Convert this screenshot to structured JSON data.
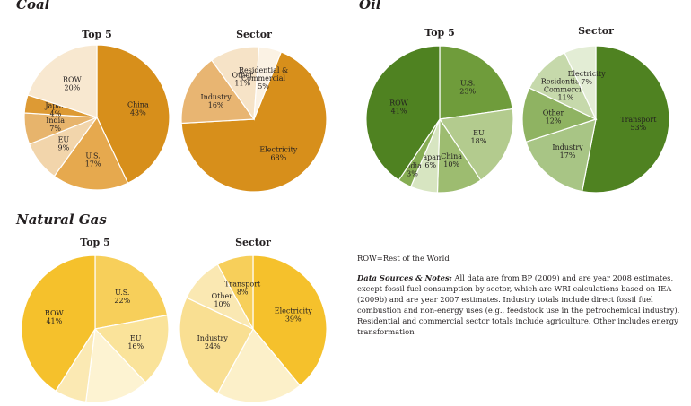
{
  "sections": {
    "coal": "Coal",
    "oil": "Oil",
    "gas": "Natural Gas"
  },
  "notes": {
    "row": "ROW=Rest of the World",
    "ds_label": "Data Sources & Notes:",
    "ds_text": " All data are from BP (2009) and are year 2008 estimates, except fossil fuel consumption by sector, which are WRI calculations based on IEA (2009b) and are year 2007 estimates. Industry totals include direct fossil fuel combustion and non-energy uses (e.g., feedstock use in the petrochemical industry). Residential and commercial sector totals include agriculture. Other includes energy transformation"
  },
  "chart_data": [
    {
      "type": "pie",
      "title": "Top 5",
      "group": "Coal",
      "slices": [
        {
          "label": "China",
          "value": 43,
          "text": "43%"
        },
        {
          "label": "U.S.",
          "value": 17,
          "text": "17%"
        },
        {
          "label": "EU",
          "value": 9,
          "text": "9%"
        },
        {
          "label": "India",
          "value": 7,
          "text": "7%"
        },
        {
          "label": "Japan",
          "value": 4,
          "text": "4%"
        },
        {
          "label": "ROW",
          "value": 20,
          "text": "20%"
        }
      ],
      "colors": [
        "#d78f1b",
        "#e6a94e",
        "#f2d5ab",
        "#e7b46c",
        "#dd9a34",
        "#f8e8d0"
      ]
    },
    {
      "type": "pie",
      "title": "Sector",
      "group": "Coal",
      "slices": [
        {
          "label": "Electricity",
          "value": 68,
          "text": "68%"
        },
        {
          "label": "Industry",
          "value": 16,
          "text": "16%"
        },
        {
          "label": "Other",
          "value": 11,
          "text": "11%"
        },
        {
          "label": "Residential & Commercial",
          "value": 5,
          "text": "5%"
        }
      ],
      "colors": [
        "#d78f1b",
        "#e8b572",
        "#f6e3c7",
        "#fbf2e4"
      ]
    },
    {
      "type": "pie",
      "title": "Top 5",
      "group": "Oil",
      "slices": [
        {
          "label": "U.S.",
          "value": 23,
          "text": "23%"
        },
        {
          "label": "EU",
          "value": 18,
          "text": "18%"
        },
        {
          "label": "China",
          "value": 10,
          "text": "10%"
        },
        {
          "label": "Japan",
          "value": 6,
          "text": "6%"
        },
        {
          "label": "India",
          "value": 3,
          "text": "3%"
        },
        {
          "label": "ROW",
          "value": 41,
          "text": "41%"
        }
      ],
      "colors": [
        "#6f9c3b",
        "#b3cb8e",
        "#9dbc70",
        "#d7e5c1",
        "#86ad53",
        "#4f8221"
      ]
    },
    {
      "type": "pie",
      "title": "Sector",
      "group": "Oil",
      "slices": [
        {
          "label": "Transport",
          "value": 53,
          "text": "53%"
        },
        {
          "label": "Industry",
          "value": 17,
          "text": "17%"
        },
        {
          "label": "Other",
          "value": 12,
          "text": "12%"
        },
        {
          "label": "Residential & Commercial",
          "value": 11,
          "text": "11%"
        },
        {
          "label": "Electricity",
          "value": 7,
          "text": "7%"
        }
      ],
      "colors": [
        "#4f8221",
        "#a8c585",
        "#8fb362",
        "#c6d9ab",
        "#e3edd5"
      ]
    },
    {
      "type": "pie",
      "title": "Top 5",
      "group": "Natural Gas",
      "slices": [
        {
          "label": "U.S.",
          "value": 22,
          "text": "22%"
        },
        {
          "label": "EU",
          "value": 16,
          "text": "16%"
        },
        {
          "label": "",
          "value": 14,
          "text": ""
        },
        {
          "label": "",
          "value": 7,
          "text": ""
        },
        {
          "label": "ROW",
          "value": 41,
          "text": "41%"
        }
      ],
      "colors": [
        "#f7cf5a",
        "#fae39a",
        "#fdf3d2",
        "#fbe9b3",
        "#f5c12c"
      ]
    },
    {
      "type": "pie",
      "title": "Sector",
      "group": "Natural Gas",
      "slices": [
        {
          "label": "Electricity",
          "value": 39,
          "text": "39%"
        },
        {
          "label": "",
          "value": 19,
          "text": ""
        },
        {
          "label": "Industry",
          "value": 24,
          "text": "24%"
        },
        {
          "label": "Other",
          "value": 10,
          "text": "10%"
        },
        {
          "label": "Transport",
          "value": 8,
          "text": "8%"
        }
      ],
      "colors": [
        "#f5c12c",
        "#fcf0c9",
        "#f9df92",
        "#fae8b2",
        "#f7cf5a"
      ]
    }
  ]
}
